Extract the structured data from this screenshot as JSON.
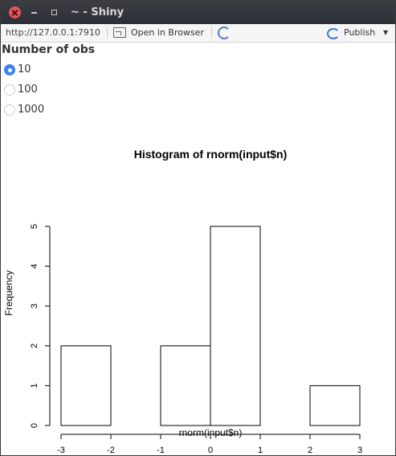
{
  "window": {
    "title": "~ - Shiny"
  },
  "toolbar": {
    "url": "http://127.0.0.1:7910",
    "open_in_browser": "Open in Browser",
    "publish": "Publish"
  },
  "sidebar": {
    "label": "Number of obs",
    "options": [
      {
        "label": "10",
        "checked": true
      },
      {
        "label": "100",
        "checked": false
      },
      {
        "label": "1000",
        "checked": false
      }
    ]
  },
  "chart_data": {
    "type": "bar",
    "title": "Histogram of rnorm(input$n)",
    "xlabel": "rnorm(input$n)",
    "ylabel": "Frequency",
    "bins": [
      {
        "start": -3,
        "end": -2,
        "count": 2
      },
      {
        "start": -2,
        "end": -1,
        "count": 0
      },
      {
        "start": -1,
        "end": 0,
        "count": 2
      },
      {
        "start": 0,
        "end": 1,
        "count": 5
      },
      {
        "start": 1,
        "end": 2,
        "count": 0
      },
      {
        "start": 2,
        "end": 3,
        "count": 1
      }
    ],
    "xlim": [
      -3,
      3
    ],
    "ylim": [
      0,
      5
    ],
    "x_ticks": [
      -3,
      -2,
      -1,
      0,
      1,
      2,
      3
    ],
    "y_ticks": [
      0,
      1,
      2,
      3,
      4,
      5
    ],
    "grid": false,
    "bar_fill": "#ffffff",
    "bar_stroke": "#000000"
  }
}
